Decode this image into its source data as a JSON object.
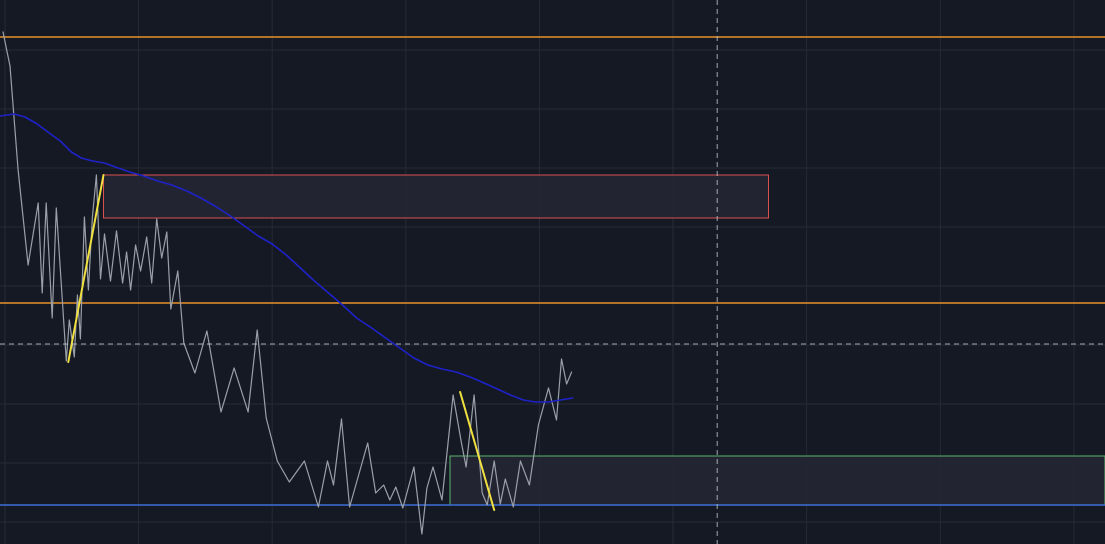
{
  "theme": {
    "background": "#151924",
    "grid": "#252a36",
    "price_line": "#9aa0aa",
    "moving_average": "#1e22c8",
    "swing_leg": "#f0e040",
    "level_top": "#e8912a",
    "level_mid": "#e8912a",
    "level_bottom": "#3d6fd6",
    "zone_supply_border": "#d9504e",
    "zone_demand_border": "#5ab36e",
    "zone_fill": "#232733",
    "crosshair": "#c8ccd4"
  },
  "chart_data": {
    "type": "line",
    "title": "",
    "xlabel": "",
    "ylabel": "",
    "xlim": [
      0,
      110
    ],
    "ylim": [
      0,
      54.4
    ],
    "grid": true,
    "legend": "none",
    "series": [
      {
        "role": "price",
        "x": [
          0.3,
          1.0,
          1.8,
          2.8,
          3.8,
          4.2,
          4.6,
          5.2,
          5.6,
          6.6,
          6.9,
          7.4,
          7.7,
          8.0,
          8.4,
          8.8,
          9.2,
          9.6,
          10.0,
          10.4,
          11.0,
          11.6,
          12.2,
          12.6,
          13.0,
          13.5,
          14.0,
          14.6,
          15.1,
          15.6,
          16.1,
          16.6,
          17.0,
          17.7,
          18.3,
          19.4,
          20.6,
          22.0,
          23.3,
          24.7,
          25.6,
          26.5,
          27.6,
          28.8,
          30.3,
          31.7,
          32.6,
          33.2,
          34.0,
          34.8,
          36.6,
          37.4,
          38.2,
          38.8,
          39.4,
          40.1,
          41.2,
          42.0,
          42.5,
          43.1,
          44.0,
          45.1,
          45.9,
          46.4,
          47.2,
          48.0,
          48.5,
          49.2,
          49.8,
          50.3,
          51.1,
          51.8,
          52.7,
          53.6,
          54.6,
          55.4,
          55.9,
          56.4,
          56.9
        ],
        "y": [
          51.2,
          47.8,
          37.4,
          27.9,
          34.1,
          25.1,
          34.1,
          22.6,
          33.6,
          18.3,
          22.4,
          18.7,
          24.9,
          20.5,
          32.7,
          25.4,
          32.7,
          36.9,
          26.5,
          31.0,
          26.3,
          31.3,
          26.1,
          29.2,
          25.4,
          29.9,
          27.3,
          30.7,
          26.1,
          32.5,
          28.6,
          31.2,
          23.5,
          27.3,
          20.1,
          17.1,
          21.3,
          13.2,
          17.6,
          13.2,
          21.4,
          12.6,
          8.3,
          6.2,
          8.3,
          3.7,
          8.3,
          5.9,
          12.5,
          3.7,
          10.1,
          5.1,
          5.9,
          4.4,
          5.7,
          3.6,
          7.7,
          1.0,
          5.6,
          7.7,
          4.4,
          14.9,
          10.3,
          7.7,
          14.9,
          5.1,
          3.9,
          8.3,
          4.0,
          6.5,
          3.7,
          8.3,
          5.9,
          11.9,
          15.6,
          12.4,
          18.5,
          16.0,
          17.2
        ]
      },
      {
        "role": "moving-average",
        "x": [
          0.0,
          1.4,
          2.5,
          3.7,
          4.9,
          6.0,
          7.1,
          8.1,
          9.2,
          10.4,
          11.5,
          12.9,
          14.3,
          15.7,
          17.1,
          18.6,
          20.0,
          21.4,
          22.8,
          24.2,
          25.7,
          27.1,
          28.5,
          29.9,
          31.3,
          32.7,
          34.1,
          35.5,
          37.0,
          38.4,
          39.8,
          41.2,
          42.6,
          44.0,
          45.4,
          46.8,
          48.2,
          49.5,
          50.8,
          52.1,
          53.3,
          54.6,
          55.8,
          57.0
        ],
        "y": [
          42.8,
          43.0,
          42.7,
          42.0,
          41.1,
          40.3,
          39.2,
          38.6,
          38.3,
          38.1,
          37.7,
          37.2,
          36.8,
          36.3,
          35.9,
          35.3,
          34.6,
          33.8,
          32.9,
          31.9,
          30.8,
          30.0,
          28.9,
          27.6,
          26.3,
          25.1,
          23.9,
          22.6,
          21.6,
          20.6,
          19.6,
          18.6,
          17.9,
          17.5,
          17.2,
          16.7,
          16.1,
          15.5,
          14.9,
          14.4,
          14.2,
          14.2,
          14.4,
          14.6
        ]
      },
      {
        "role": "swing-leg",
        "x": [
          6.8,
          10.3
        ],
        "y": [
          18.2,
          36.9
        ]
      },
      {
        "role": "swing-leg",
        "x": [
          45.8,
          49.2
        ],
        "y": [
          15.2,
          3.4
        ]
      }
    ],
    "levels": [
      {
        "role": "level-top",
        "y": 50.7
      },
      {
        "role": "level-mid",
        "y": 24.1
      },
      {
        "role": "level-bottom",
        "y": 3.9
      }
    ],
    "zones": [
      {
        "role": "supply-zone",
        "x": [
          10.3,
          76.5
        ],
        "y": [
          32.6,
          36.9
        ]
      },
      {
        "role": "demand-zone",
        "x": [
          44.8,
          110
        ],
        "y": [
          3.9,
          8.8
        ]
      }
    ],
    "crosshair": {
      "x": 71.4,
      "y": 20.0
    }
  }
}
